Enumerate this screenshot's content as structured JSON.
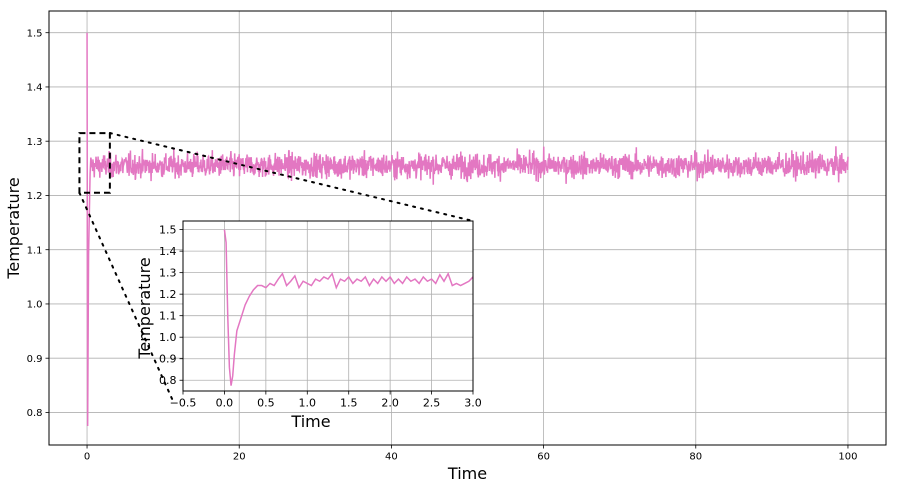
{
  "chart_data": [
    {
      "id": "main",
      "type": "line",
      "title": "",
      "xlabel": "Time",
      "ylabel": "Temperature",
      "xlim": [
        -5,
        105
      ],
      "ylim": [
        0.74,
        1.54
      ],
      "grid": true,
      "xticks": [
        0,
        20,
        40,
        60,
        80,
        100
      ],
      "yticks": [
        0.8,
        0.9,
        1.0,
        1.1,
        1.2,
        1.3,
        1.4,
        1.5
      ],
      "xtick_labels": [
        "0",
        "20",
        "40",
        "60",
        "80",
        "100"
      ],
      "ytick_labels": [
        "0.8",
        "0.9",
        "1.0",
        "1.1",
        "1.2",
        "1.3",
        "1.4",
        "1.5"
      ],
      "series": [
        {
          "color": "#e377c2",
          "description": "noisy temperature signal fluctuating around mean",
          "x_range": [
            0,
            100
          ],
          "initial_peak": 1.5,
          "initial_dip": 0.775,
          "mean": 1.255,
          "fluct_min": 1.19,
          "fluct_max": 1.325
        }
      ],
      "zoom_box": {
        "x": [
          -1,
          3
        ],
        "y": [
          1.205,
          1.315
        ],
        "style": "dashed"
      }
    },
    {
      "id": "inset",
      "type": "line",
      "xlabel": "Time",
      "ylabel": "Temperature",
      "xlim": [
        -0.5,
        3.0
      ],
      "ylim": [
        0.75,
        1.54
      ],
      "grid": true,
      "xticks": [
        -0.5,
        0.0,
        0.5,
        1.0,
        1.5,
        2.0,
        2.5,
        3.0
      ],
      "yticks": [
        0.8,
        0.9,
        1.0,
        1.1,
        1.2,
        1.3,
        1.4,
        1.5
      ],
      "xtick_labels": [
        "−0.5",
        "0.0",
        "0.5",
        "1.0",
        "1.5",
        "2.0",
        "2.5",
        "3.0"
      ],
      "ytick_labels": [
        "0.8",
        "0.9",
        "1.0",
        "1.1",
        "1.2",
        "1.3",
        "1.4",
        "1.5"
      ],
      "series": [
        {
          "color": "#e377c2",
          "points": [
            [
              0.0,
              1.5
            ],
            [
              0.02,
              1.44
            ],
            [
              0.04,
              1.1
            ],
            [
              0.06,
              0.86
            ],
            [
              0.08,
              0.775
            ],
            [
              0.1,
              0.82
            ],
            [
              0.12,
              0.92
            ],
            [
              0.15,
              1.03
            ],
            [
              0.2,
              1.09
            ],
            [
              0.25,
              1.15
            ],
            [
              0.3,
              1.19
            ],
            [
              0.35,
              1.22
            ],
            [
              0.4,
              1.24
            ],
            [
              0.45,
              1.24
            ],
            [
              0.5,
              1.23
            ],
            [
              0.55,
              1.25
            ],
            [
              0.6,
              1.24
            ],
            [
              0.65,
              1.27
            ],
            [
              0.7,
              1.295
            ],
            [
              0.75,
              1.24
            ],
            [
              0.8,
              1.26
            ],
            [
              0.85,
              1.285
            ],
            [
              0.9,
              1.23
            ],
            [
              0.95,
              1.26
            ],
            [
              1.0,
              1.25
            ],
            [
              1.05,
              1.24
            ],
            [
              1.1,
              1.27
            ],
            [
              1.15,
              1.26
            ],
            [
              1.2,
              1.28
            ],
            [
              1.25,
              1.27
            ],
            [
              1.3,
              1.295
            ],
            [
              1.35,
              1.23
            ],
            [
              1.4,
              1.27
            ],
            [
              1.45,
              1.26
            ],
            [
              1.5,
              1.28
            ],
            [
              1.55,
              1.25
            ],
            [
              1.6,
              1.27
            ],
            [
              1.65,
              1.26
            ],
            [
              1.7,
              1.28
            ],
            [
              1.75,
              1.24
            ],
            [
              1.8,
              1.27
            ],
            [
              1.85,
              1.25
            ],
            [
              1.9,
              1.28
            ],
            [
              1.95,
              1.26
            ],
            [
              2.0,
              1.28
            ],
            [
              2.05,
              1.25
            ],
            [
              2.1,
              1.27
            ],
            [
              2.15,
              1.25
            ],
            [
              2.2,
              1.28
            ],
            [
              2.25,
              1.26
            ],
            [
              2.3,
              1.27
            ],
            [
              2.35,
              1.25
            ],
            [
              2.4,
              1.28
            ],
            [
              2.45,
              1.26
            ],
            [
              2.5,
              1.27
            ],
            [
              2.55,
              1.25
            ],
            [
              2.6,
              1.29
            ],
            [
              2.65,
              1.26
            ],
            [
              2.7,
              1.295
            ],
            [
              2.75,
              1.24
            ],
            [
              2.8,
              1.25
            ],
            [
              2.85,
              1.24
            ],
            [
              2.9,
              1.25
            ],
            [
              2.95,
              1.26
            ],
            [
              3.0,
              1.28
            ]
          ]
        }
      ]
    }
  ]
}
